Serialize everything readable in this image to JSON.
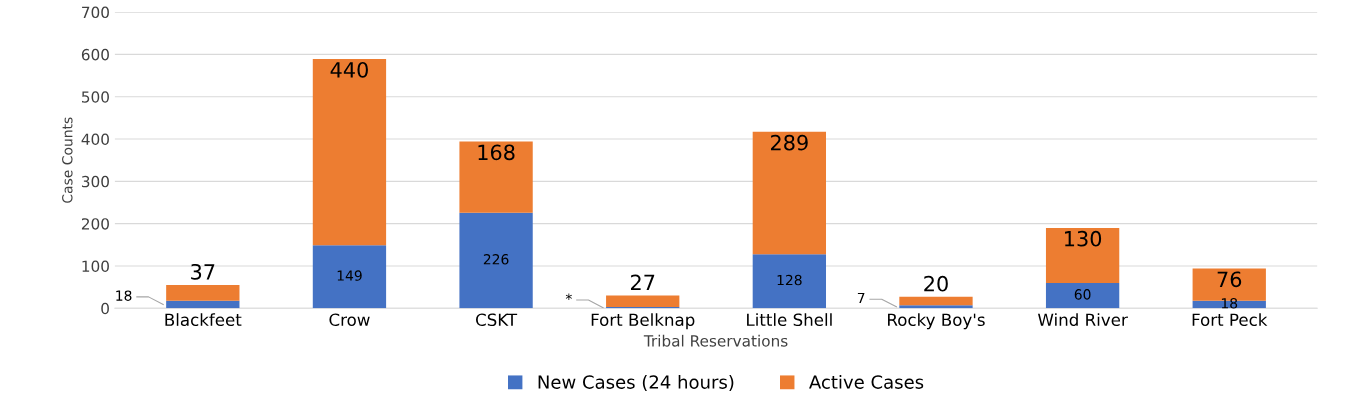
{
  "chart_data": {
    "type": "bar",
    "stacked": true,
    "xlabel": "Tribal Reservations",
    "ylabel": "Case Counts",
    "categories": [
      "Blackfeet",
      "Crow",
      "CSKT",
      "Fort Belknap",
      "Little Shell",
      "Rocky Boy's",
      "Wind River",
      "Fort Peck"
    ],
    "series": [
      {
        "name": "New Cases (24 hours)",
        "color": "#4472c4",
        "values": [
          18,
          149,
          226,
          3,
          128,
          7,
          60,
          18
        ],
        "value_labels": [
          "18",
          "149",
          "226",
          "*",
          "128",
          "7",
          "60",
          "18"
        ]
      },
      {
        "name": "Active Cases",
        "color": "#ed7d31",
        "values": [
          37,
          440,
          168,
          27,
          289,
          20,
          130,
          76
        ],
        "value_labels": [
          "37",
          "440",
          "168",
          "27",
          "289",
          "20",
          "130",
          "76"
        ]
      }
    ],
    "ylim": [
      0,
      700
    ],
    "yticks": [
      0,
      100,
      200,
      300,
      400,
      500,
      600,
      700
    ],
    "grid": "y",
    "legend": "bottom"
  }
}
